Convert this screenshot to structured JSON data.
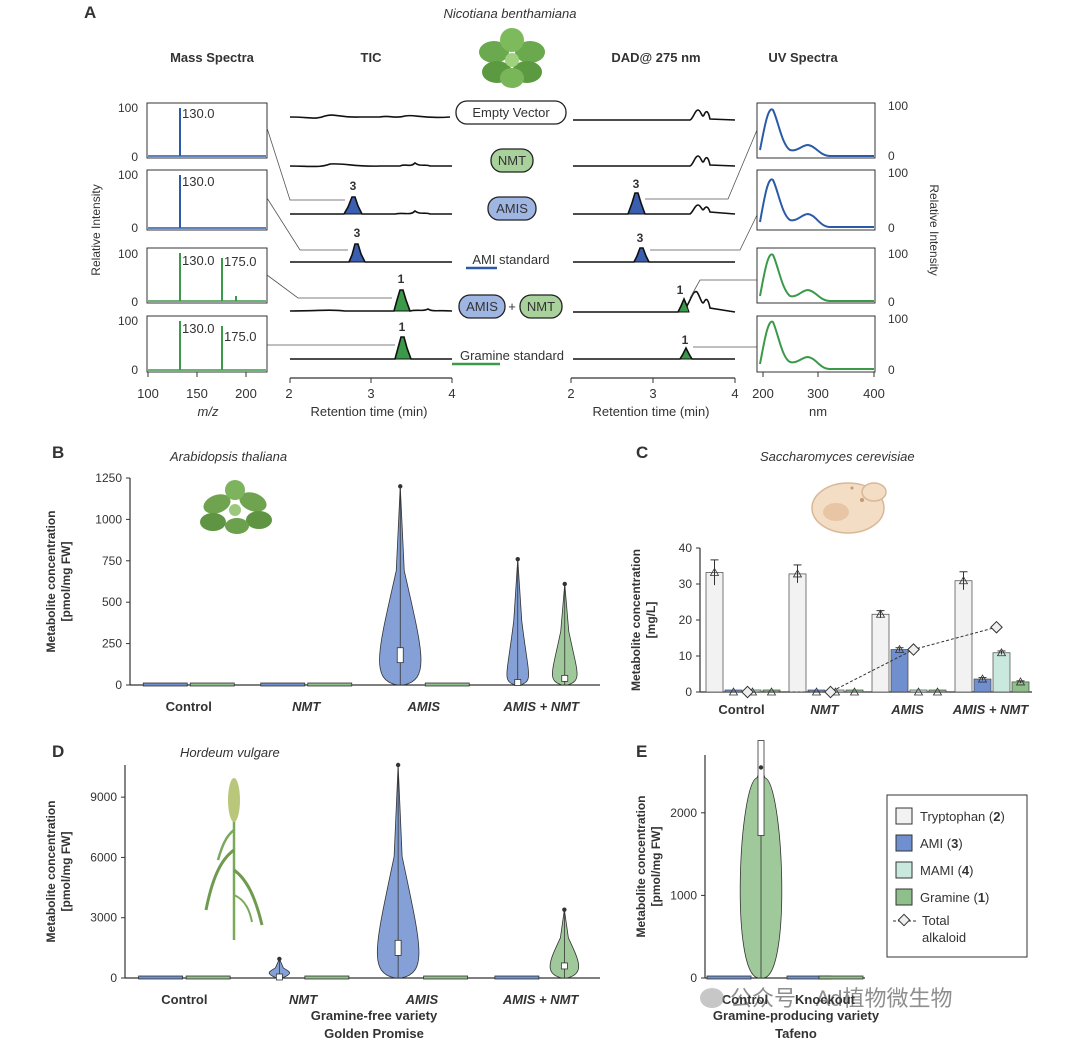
{
  "panels": {
    "A": {
      "label": "A",
      "organism": "Nicotiana benthamiana",
      "column_titles": {
        "mass_spectra": "Mass Spectra",
        "tic": "TIC",
        "dad": "DAD@ 275 nm",
        "uv_spectra": "UV Spectra"
      },
      "rows": [
        {
          "label": "Empty Vector",
          "style": "plain"
        },
        {
          "label": "NMT",
          "style": "green"
        },
        {
          "label": "AMIS",
          "style": "blue"
        },
        {
          "label": "AMI standard",
          "style": "blue-underline"
        },
        {
          "label_a": "AMIS",
          "plus": "+",
          "label_b": "NMT",
          "style": "combo"
        },
        {
          "label": "Gramine standard",
          "style": "green-underline"
        }
      ],
      "peak_labels": {
        "ami": "3",
        "gramine": "1"
      },
      "mass_spectra": {
        "ms1": {
          "peaks": [
            "130.0"
          ]
        },
        "ms2": {
          "peaks": [
            "130.0"
          ]
        },
        "ms3": {
          "peaks": [
            "130.0",
            "175.0"
          ]
        },
        "ms4": {
          "peaks": [
            "130.0",
            "175.0"
          ]
        },
        "yticks": [
          "100",
          "0"
        ],
        "xticks": [
          "100",
          "150",
          "200"
        ],
        "xlabel": "m/z",
        "ylabel": "Relative Intensity"
      },
      "tic": {
        "xticks": [
          "2",
          "3",
          "4"
        ],
        "xlabel": "Retention time (min)"
      },
      "dad": {
        "xticks": [
          "2",
          "3",
          "4"
        ],
        "xlabel": "Retention time (min)"
      },
      "uv": {
        "yticks": [
          "100",
          "0"
        ],
        "xticks": [
          "200",
          "300",
          "400"
        ],
        "xlabel": "nm",
        "ylabel": "Relative Intensity"
      }
    },
    "B": {
      "label": "B",
      "organism": "Arabidopsis thaliana"
    },
    "C": {
      "label": "C",
      "organism": "Saccharomyces cerevisiae"
    },
    "D": {
      "label": "D",
      "organism": "Hordeum vulgare",
      "variety_line1": "Gramine-free variety",
      "variety_line2": "Golden Promise"
    },
    "E": {
      "label": "E",
      "variety_line1": "Gramine-producing variety",
      "variety_line2": "Tafeno"
    }
  },
  "legend": {
    "items": [
      {
        "name": "Tryptophan",
        "num": "2",
        "color": "#f2f2f2"
      },
      {
        "name": "AMI",
        "num": "3",
        "color": "#6f8fcf"
      },
      {
        "name": "MAMI",
        "num": "4",
        "color": "#c9e9df"
      },
      {
        "name": "Gramine",
        "num": "1",
        "color": "#8fbf8a"
      }
    ],
    "total_line1": "Total",
    "total_line2": "alkaloid"
  },
  "colors": {
    "ami_blue": "#6f8fcf",
    "gramine_green": "#8fbf8a",
    "ms_blue": "#2b5aa8",
    "ms_green": "#3a9a4a",
    "tryptophan": "#f2f2f2",
    "mami": "#c9e9df"
  },
  "watermark": "公众号 · Ad植物微生物",
  "chart_data": [
    {
      "id": "B",
      "type": "violin",
      "title": "Arabidopsis thaliana",
      "ylabel_line1": "Metabolite concentration",
      "ylabel_line2": "[pmol/mg FW]",
      "ylim": [
        0,
        1250
      ],
      "yticks": [
        0,
        250,
        500,
        750,
        1000,
        1250
      ],
      "categories": [
        "Control",
        "NMT",
        "AMIS",
        "AMIS + NMT"
      ],
      "series": [
        {
          "name": "AMI",
          "medians": [
            0,
            0,
            180,
            15
          ],
          "max": [
            2,
            2,
            1200,
            760
          ]
        },
        {
          "name": "Gramine",
          "medians": [
            5,
            3,
            3,
            40
          ],
          "max": [
            18,
            10,
            10,
            610
          ]
        }
      ]
    },
    {
      "id": "C",
      "type": "bar",
      "title": "Saccharomyces cerevisiae",
      "ylabel_line1": "Metabolite concentration",
      "ylabel_line2": "[mg/L]",
      "ylim": [
        0,
        40
      ],
      "yticks": [
        0,
        10,
        20,
        30,
        40
      ],
      "categories": [
        "Control",
        "NMT",
        "AMIS",
        "AMIS + NMT"
      ],
      "series": [
        {
          "name": "Tryptophan",
          "values": [
            33.2,
            32.8,
            21.6,
            30.9
          ],
          "err": [
            3.5,
            2.5,
            1.0,
            2.5
          ]
        },
        {
          "name": "AMI",
          "values": [
            0,
            0,
            11.8,
            3.6
          ],
          "err": [
            0,
            0,
            0.5,
            0.4
          ]
        },
        {
          "name": "MAMI",
          "values": [
            0,
            0,
            0,
            10.9
          ],
          "err": [
            0,
            0,
            0,
            0.5
          ]
        },
        {
          "name": "Gramine",
          "values": [
            0,
            0,
            0,
            2.8
          ],
          "err": [
            0,
            0,
            0,
            0.3
          ]
        },
        {
          "name": "Total alkaloid",
          "values": [
            0,
            0,
            11.8,
            18.0
          ]
        }
      ]
    },
    {
      "id": "D",
      "type": "violin",
      "title": "Hordeum vulgare",
      "ylabel_line1": "Metabolite concentration",
      "ylabel_line2": "[pmol/mg FW]",
      "ylim": [
        0,
        10600
      ],
      "yticks": [
        0,
        3000,
        6000,
        9000
      ],
      "categories": [
        "Control",
        "NMT",
        "AMIS",
        "AMIS + NMT"
      ],
      "series": [
        {
          "name": "AMI",
          "medians": [
            0,
            50,
            1500,
            20
          ],
          "max": [
            10,
            950,
            10600,
            150
          ]
        },
        {
          "name": "Gramine",
          "medians": [
            10,
            10,
            20,
            600
          ],
          "max": [
            50,
            40,
            60,
            3400
          ]
        }
      ]
    },
    {
      "id": "E",
      "type": "violin",
      "title": "",
      "ylabel_line1": "Metabolite concentration",
      "ylabel_line2": "[pmol/mg FW]",
      "ylim": [
        0,
        2700
      ],
      "yticks": [
        0,
        1000,
        2000
      ],
      "categories": [
        "Control",
        "Knockout"
      ],
      "series": [
        {
          "name": "AMI",
          "medians": [
            10,
            15
          ],
          "max": [
            30,
            40
          ]
        },
        {
          "name": "Gramine",
          "medians": [
            2300,
            25
          ],
          "max": [
            2550,
            40
          ]
        }
      ]
    }
  ]
}
